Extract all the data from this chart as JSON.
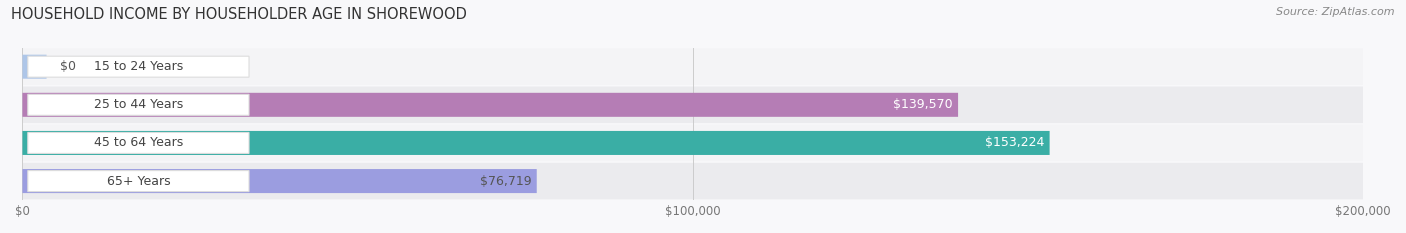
{
  "title": "HOUSEHOLD INCOME BY HOUSEHOLDER AGE IN SHOREWOOD",
  "source": "Source: ZipAtlas.com",
  "categories": [
    "15 to 24 Years",
    "25 to 44 Years",
    "45 to 64 Years",
    "65+ Years"
  ],
  "values": [
    0,
    139570,
    153224,
    76719
  ],
  "bar_colors": [
    "#aec6e8",
    "#b57db5",
    "#3aaea5",
    "#9b9de0"
  ],
  "val_label_colors": [
    "#555555",
    "#ffffff",
    "#ffffff",
    "#555555"
  ],
  "row_bg_light": "#f4f4f6",
  "row_bg_dark": "#ebebee",
  "label_pill_color": "#ffffff",
  "label_text_color": "#444444",
  "val_label_outside_color": "#555555",
  "xlim": [
    0,
    200000
  ],
  "xticks": [
    0,
    100000,
    200000
  ],
  "xtick_labels": [
    "$0",
    "$100,000",
    "$200,000"
  ],
  "title_fontsize": 10.5,
  "source_fontsize": 8,
  "bar_label_fontsize": 9,
  "val_label_fontsize": 9,
  "bar_height": 0.62,
  "figsize": [
    14.06,
    2.33
  ],
  "dpi": 100
}
